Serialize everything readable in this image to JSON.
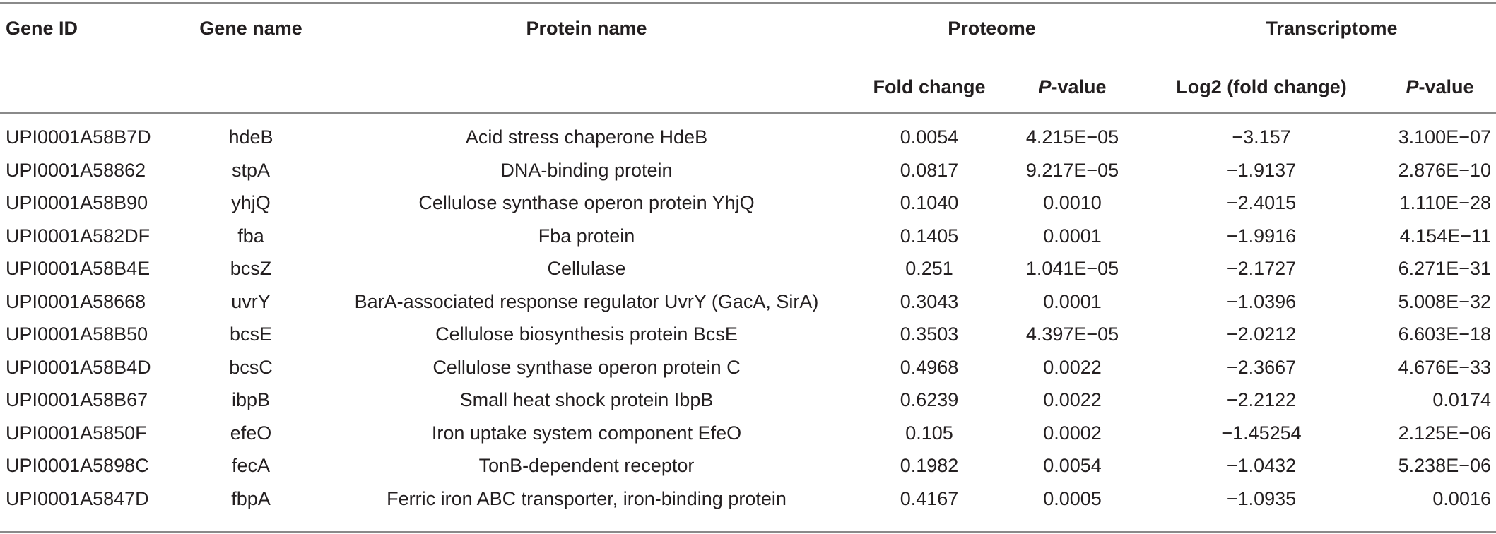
{
  "table": {
    "headers": {
      "gene_id": "Gene ID",
      "gene_name": "Gene name",
      "protein_name": "Protein name",
      "proteome": "Proteome",
      "transcriptome": "Transcriptome",
      "fold_change": "Fold change",
      "p_value_italic": "P",
      "p_value_rest": "-value",
      "log2_fold_change": "Log2 (fold change)"
    },
    "rows": [
      {
        "gene_id": "UPI0001A58B7D",
        "gene_name": "hdeB",
        "protein_name": "Acid stress chaperone HdeB",
        "prot_fc": "0.0054",
        "prot_p": "4.215E−05",
        "tx_log2": "−3.157",
        "tx_p": "3.100E−07"
      },
      {
        "gene_id": "UPI0001A58862",
        "gene_name": "stpA",
        "protein_name": "DNA-binding protein",
        "prot_fc": "0.0817",
        "prot_p": "9.217E−05",
        "tx_log2": "−1.9137",
        "tx_p": "2.876E−10"
      },
      {
        "gene_id": "UPI0001A58B90",
        "gene_name": "yhjQ",
        "protein_name": "Cellulose synthase operon protein YhjQ",
        "prot_fc": "0.1040",
        "prot_p": "0.0010",
        "tx_log2": "−2.4015",
        "tx_p": "1.110E−28"
      },
      {
        "gene_id": "UPI0001A582DF",
        "gene_name": "fba",
        "protein_name": "Fba protein",
        "prot_fc": "0.1405",
        "prot_p": "0.0001",
        "tx_log2": "−1.9916",
        "tx_p": "4.154E−11"
      },
      {
        "gene_id": "UPI0001A58B4E",
        "gene_name": "bcsZ",
        "protein_name": "Cellulase",
        "prot_fc": "0.251",
        "prot_p": "1.041E−05",
        "tx_log2": "−2.1727",
        "tx_p": "6.271E−31"
      },
      {
        "gene_id": "UPI0001A58668",
        "gene_name": "uvrY",
        "protein_name": "BarA-associated response regulator UvrY (GacA, SirA)",
        "prot_fc": "0.3043",
        "prot_p": "0.0001",
        "tx_log2": "−1.0396",
        "tx_p": "5.008E−32"
      },
      {
        "gene_id": "UPI0001A58B50",
        "gene_name": "bcsE",
        "protein_name": "Cellulose biosynthesis protein BcsE",
        "prot_fc": "0.3503",
        "prot_p": "4.397E−05",
        "tx_log2": "−2.0212",
        "tx_p": "6.603E−18"
      },
      {
        "gene_id": "UPI0001A58B4D",
        "gene_name": "bcsC",
        "protein_name": "Cellulose synthase operon protein C",
        "prot_fc": "0.4968",
        "prot_p": "0.0022",
        "tx_log2": "−2.3667",
        "tx_p": "4.676E−33"
      },
      {
        "gene_id": "UPI0001A58B67",
        "gene_name": "ibpB",
        "protein_name": "Small heat shock protein IbpB",
        "prot_fc": "0.6239",
        "prot_p": "0.0022",
        "tx_log2": "−2.2122",
        "tx_p": "0.0174"
      },
      {
        "gene_id": "UPI0001A5850F",
        "gene_name": "efeO",
        "protein_name": "Iron uptake system component EfeO",
        "prot_fc": "0.105",
        "prot_p": "0.0002",
        "tx_log2": "−1.45254",
        "tx_p": "2.125E−06"
      },
      {
        "gene_id": "UPI0001A5898C",
        "gene_name": "fecA",
        "protein_name": "TonB-dependent receptor",
        "prot_fc": "0.1982",
        "prot_p": "0.0054",
        "tx_log2": "−1.0432",
        "tx_p": "5.238E−06"
      },
      {
        "gene_id": "UPI0001A5847D",
        "gene_name": "fbpA",
        "protein_name": "Ferric iron ABC transporter, iron-binding protein",
        "prot_fc": "0.4167",
        "prot_p": "0.0005",
        "tx_log2": "−1.0935",
        "tx_p": "0.0016"
      }
    ]
  }
}
